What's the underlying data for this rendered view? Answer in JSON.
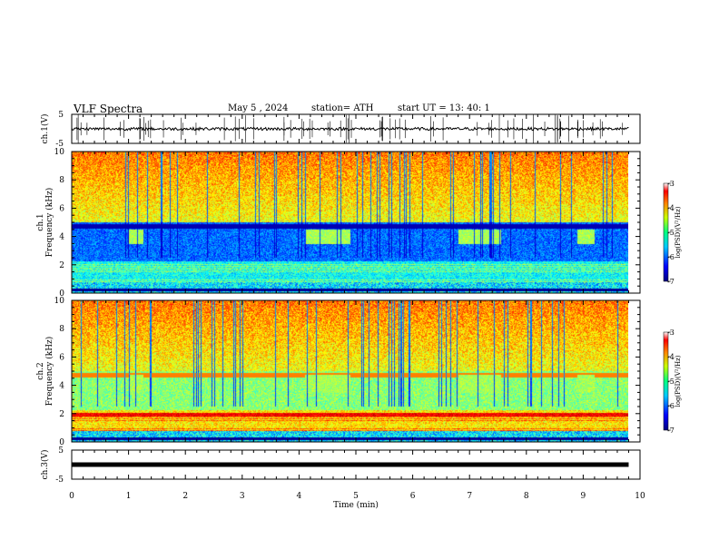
{
  "header": {
    "title": "VLF Spectra",
    "date": "May 5 , 2024",
    "station": "station= ATH",
    "start": "start UT = 13: 40: 1"
  },
  "colorbar": {
    "label": "log(PSD)(V²/Hz)",
    "ticks": [
      "-3",
      "-4",
      "-5",
      "-6",
      "-7"
    ]
  },
  "chart_data": [
    {
      "type": "line",
      "panel": "ch1-waveform",
      "ylabel": "ch.1(V)",
      "yticks": [
        "5",
        "-5"
      ],
      "ylim": [
        -5,
        5
      ],
      "xlim": [
        0,
        9.8
      ],
      "description_values": {
        "baseline": 0,
        "typical_amplitude": 0.5
      }
    },
    {
      "type": "heatmap",
      "panel": "ch1-spectrogram",
      "ylabel_top": "ch.1",
      "ylabel": "Frequency (kHz)",
      "yticks": [
        "10",
        "8",
        "6",
        "4",
        "2",
        "0"
      ],
      "ylim": [
        0,
        10
      ],
      "xlim": [
        0,
        9.8
      ],
      "color_scale": "log(PSD) -7 to -3",
      "bursts_min": [
        [
          1.0,
          1.25
        ],
        [
          4.1,
          4.9
        ],
        [
          6.8,
          7.55
        ],
        [
          8.9,
          9.2
        ]
      ],
      "burst_freq_khz": [
        3.5,
        4.5
      ]
    },
    {
      "type": "heatmap",
      "panel": "ch2-spectrogram",
      "ylabel_top": "ch.2",
      "ylabel": "Frequency (kHz)",
      "yticks": [
        "10",
        "8",
        "6",
        "4",
        "2",
        "0"
      ],
      "ylim": [
        0,
        10
      ],
      "xlim": [
        0,
        9.8
      ],
      "color_scale": "log(PSD) -7 to -3",
      "bursts_min": [
        [
          1.0,
          1.25
        ],
        [
          4.1,
          4.9
        ],
        [
          6.8,
          7.55
        ],
        [
          8.9,
          9.2
        ]
      ],
      "burst_freq_khz": [
        3.5,
        4.8
      ]
    },
    {
      "type": "line",
      "panel": "ch3-waveform",
      "ylabel": "ch.3(V)",
      "yticks": [
        "5",
        "-5"
      ],
      "ylim": [
        -5,
        5
      ],
      "xlim": [
        0,
        9.8
      ],
      "xlabel": "Time (min)",
      "xticks": [
        "0",
        "1",
        "2",
        "3",
        "4",
        "5",
        "6",
        "7",
        "8",
        "9",
        "10"
      ],
      "description_values": {
        "baseline": 0
      }
    }
  ]
}
